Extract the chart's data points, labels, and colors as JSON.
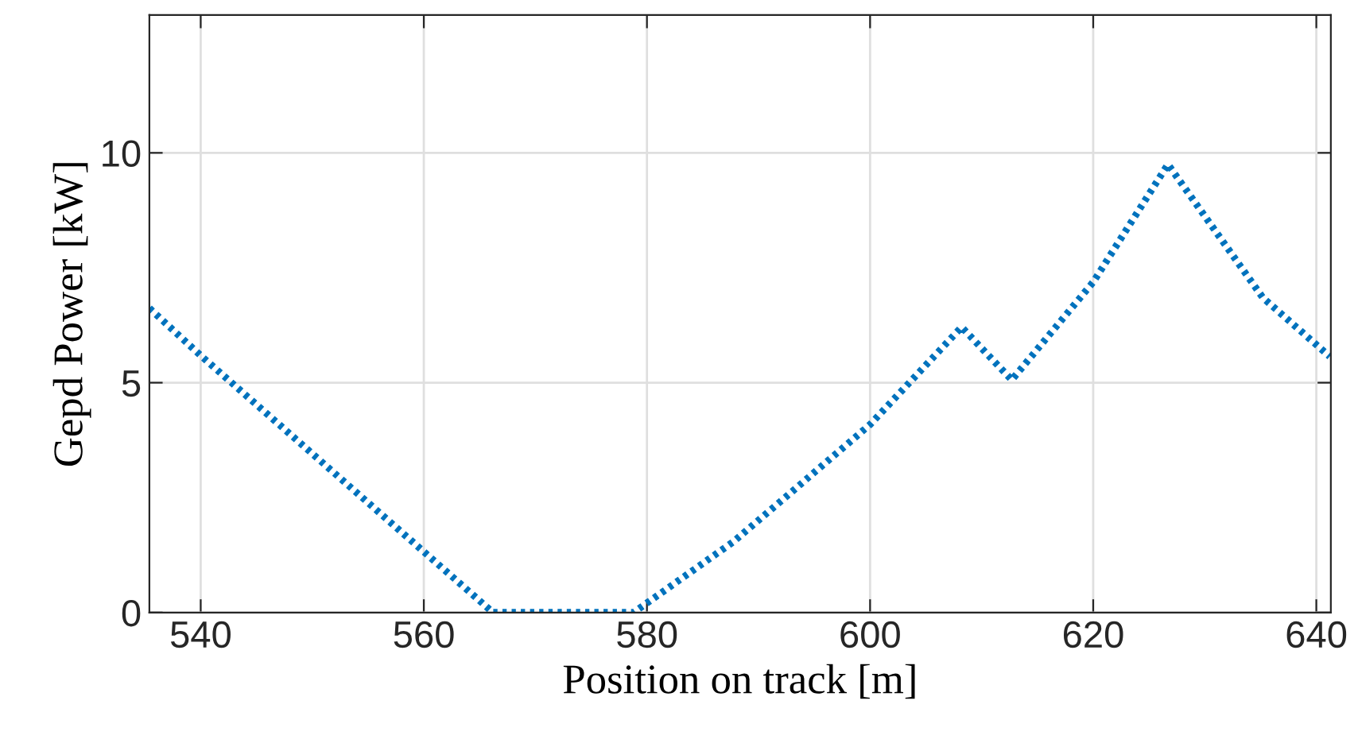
{
  "chart_data": {
    "type": "line",
    "xlabel": "Position on track [m]",
    "ylabel": "Gepd Power [kW]",
    "x": [
      535.4,
      540,
      566.2,
      578.8,
      587.8,
      591.7,
      600,
      608.2,
      612.7,
      620,
      626.7,
      635.2,
      641.2
    ],
    "series": [
      {
        "color": "#0072bd",
        "values": [
          6.62,
          5.59,
          0,
          0,
          1.55,
          2.36,
          4.09,
          6.21,
          5.06,
          7.19,
          9.75,
          6.85,
          5.57
        ]
      }
    ],
    "xlim": [
      535.4,
      641.3
    ],
    "ylim": [
      0,
      13
    ],
    "xticks": [
      540,
      560,
      580,
      600,
      620,
      640
    ],
    "yticks": [
      0,
      5,
      10
    ],
    "grid": true,
    "line_style": "dotted",
    "marker": "none"
  }
}
